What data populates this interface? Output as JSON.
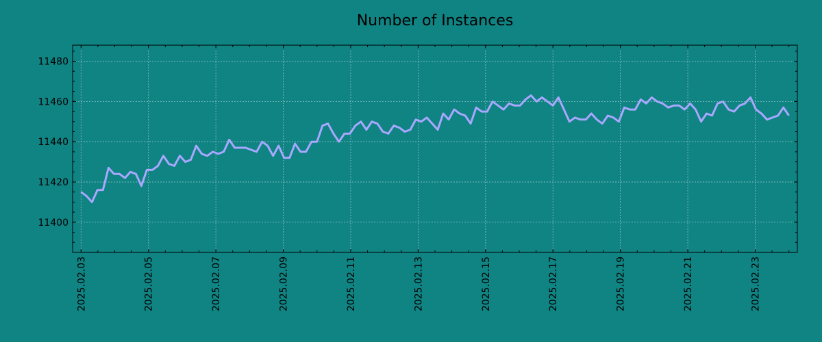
{
  "chart_data": {
    "type": "line",
    "title": "Number of Instances",
    "xlabel": "",
    "ylabel": "",
    "x_start": "2025-02-03",
    "x_end": "2025-02-24",
    "xlim": [
      "2025-02-02T18:00",
      "2025-02-24T06:00"
    ],
    "ylim": [
      11385,
      11488
    ],
    "x_ticks": [
      "2025.02.03",
      "2025.02.05",
      "2025.02.07",
      "2025.02.09",
      "2025.02.11",
      "2025.02.13",
      "2025.02.15",
      "2025.02.17",
      "2025.02.19",
      "2025.02.21",
      "2025.02.23"
    ],
    "y_ticks": [
      "11400",
      "11420",
      "11440",
      "11460",
      "11480"
    ],
    "grid": true,
    "colors": {
      "background": "#108383",
      "line": "#a8a8ff"
    },
    "series": [
      {
        "values": [
          11415,
          11413,
          11410,
          11416,
          11416,
          11427,
          11424,
          11424,
          11422,
          11425,
          11424,
          11418,
          11426,
          11426,
          11428,
          11433,
          11429,
          11428,
          11433,
          11430,
          11431,
          11438,
          11434,
          11433,
          11435,
          11434,
          11435,
          11441,
          11437,
          11437,
          11437,
          11436,
          11435,
          11440,
          11438,
          11433,
          11438,
          11432,
          11432,
          11439,
          11435,
          11435,
          11440,
          11440,
          11448,
          11449,
          11444,
          11440,
          11444,
          11444,
          11448,
          11450,
          11446,
          11450,
          11449,
          11445,
          11444,
          11448,
          11447,
          11445,
          11446,
          11451,
          11450,
          11452,
          11449,
          11446,
          11454,
          11451,
          11456,
          11454,
          11453,
          11449,
          11457,
          11455,
          11455,
          11460,
          11458,
          11456,
          11459,
          11458,
          11458,
          11461,
          11463,
          11460,
          11462,
          11460,
          11458,
          11462,
          11456,
          11450,
          11452,
          11451,
          11451,
          11454,
          11451,
          11449,
          11453,
          11452,
          11450,
          11457,
          11456,
          11456,
          11461,
          11459,
          11462,
          11460,
          11459,
          11457,
          11458,
          11458,
          11456,
          11459,
          11456,
          11450,
          11454,
          11453,
          11459,
          11460,
          11456,
          11455,
          11458,
          11459,
          11462,
          11456,
          11454,
          11451,
          11452,
          11453,
          11457,
          11453
        ]
      }
    ]
  }
}
